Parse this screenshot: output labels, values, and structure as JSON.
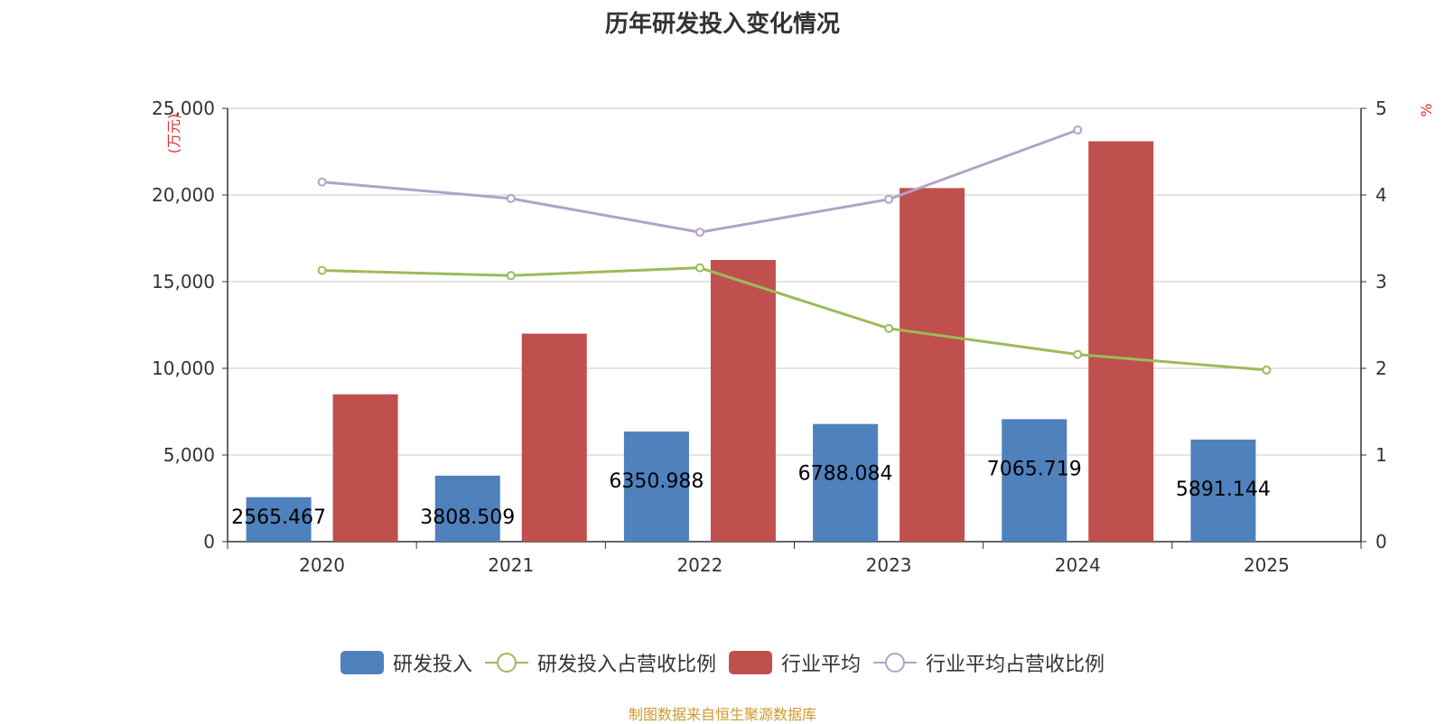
{
  "chart_data": {
    "type": "bar",
    "title": "历年研发投入变化情况",
    "categories": [
      "2020",
      "2021",
      "2022",
      "2023",
      "2024",
      "2025"
    ],
    "y_left": {
      "unit": "(万元)",
      "ylim": [
        0,
        25000
      ],
      "ticks": [
        0,
        5000,
        10000,
        15000,
        20000,
        25000
      ],
      "tick_labels": [
        "0",
        "5,000",
        "10,000",
        "15,000",
        "20,000",
        "25,000"
      ]
    },
    "y_right": {
      "unit": "%",
      "ylim": [
        0,
        5
      ],
      "ticks": [
        0,
        1,
        2,
        3,
        4,
        5
      ],
      "tick_labels": [
        "0",
        "1",
        "2",
        "3",
        "4",
        "5"
      ]
    },
    "series": [
      {
        "name": "研发投入",
        "kind": "bar",
        "axis": "left",
        "color": "#4f81bd",
        "values": [
          2565.467,
          3808.509,
          6350.988,
          6788.084,
          7065.719,
          5891.144
        ],
        "labels": [
          "2565.467",
          "3808.509",
          "6350.988",
          "6788.084",
          "7065.719",
          "5891.144"
        ]
      },
      {
        "name": "研发投入占营收比例",
        "kind": "line",
        "axis": "right",
        "color": "#9bbb59",
        "values": [
          3.13,
          3.07,
          3.16,
          2.46,
          2.16,
          1.98
        ]
      },
      {
        "name": "行业平均",
        "kind": "bar",
        "axis": "left",
        "color": "#c0504d",
        "values": [
          8500,
          12000,
          16250,
          20400,
          23100,
          null
        ]
      },
      {
        "name": "行业平均占营收比例",
        "kind": "line",
        "axis": "right",
        "color": "#b3a2c7",
        "values": [
          4.15,
          3.96,
          3.57,
          3.95,
          4.75,
          null
        ]
      }
    ],
    "grid": true,
    "legend_position": "bottom"
  },
  "source_note": "制图数据来自恒生聚源数据库"
}
